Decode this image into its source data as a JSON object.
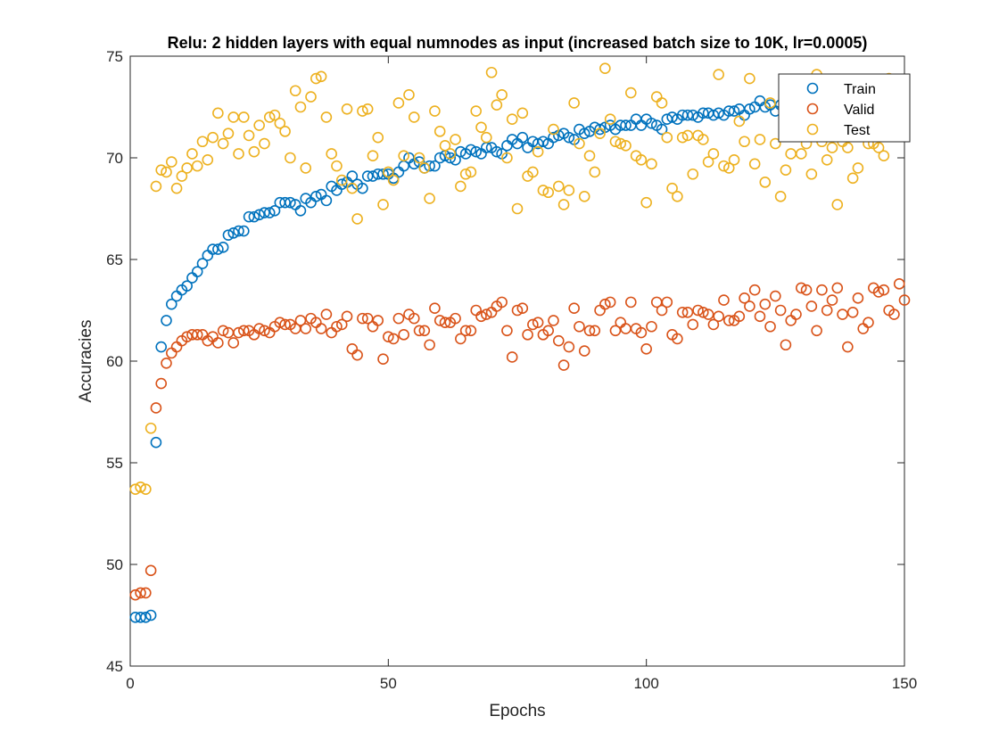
{
  "chart_data": {
    "type": "scatter",
    "title": "Relu: 2 hidden layers with equal numnodes as input (increased batch size to 10K, lr=0.0005)",
    "xlabel": "Epochs",
    "ylabel": "Accuracies",
    "xlim": [
      0,
      150
    ],
    "ylim": [
      45,
      75
    ],
    "xticks": [
      0,
      50,
      100,
      150
    ],
    "yticks": [
      45,
      50,
      55,
      60,
      65,
      70,
      75
    ],
    "grid": false,
    "legend_position": "top-right",
    "marker": "open-circle",
    "series": [
      {
        "name": "Train",
        "color": "#0072BD",
        "x": [
          1,
          2,
          3,
          4,
          5,
          6,
          7,
          8,
          9,
          10,
          11,
          12,
          13,
          14,
          15,
          16,
          17,
          18,
          19,
          20,
          21,
          22,
          23,
          24,
          25,
          26,
          27,
          28,
          29,
          30,
          31,
          32,
          33,
          34,
          35,
          36,
          37,
          38,
          39,
          40,
          41,
          42,
          43,
          44,
          45,
          46,
          47,
          48,
          49,
          50,
          51,
          52,
          53,
          54,
          55,
          56,
          57,
          58,
          59,
          60,
          61,
          62,
          63,
          64,
          65,
          66,
          67,
          68,
          69,
          70,
          71,
          72,
          73,
          74,
          75,
          76,
          77,
          78,
          79,
          80,
          81,
          82,
          83,
          84,
          85,
          86,
          87,
          88,
          89,
          90,
          91,
          92,
          93,
          94,
          95,
          96,
          97,
          98,
          99,
          100,
          101,
          102,
          103,
          104,
          105,
          106,
          107,
          108,
          109,
          110,
          111,
          112,
          113,
          114,
          115,
          116,
          117,
          118,
          119,
          120,
          121,
          122,
          123,
          124,
          125,
          126,
          127,
          128,
          129,
          130,
          131,
          132,
          133,
          134,
          135,
          136,
          137,
          138,
          139,
          140,
          141,
          142,
          143,
          144,
          145,
          146,
          147,
          148,
          149,
          150
        ],
        "values": [
          47.4,
          47.4,
          47.4,
          47.5,
          56.0,
          60.7,
          62.0,
          62.8,
          63.2,
          63.5,
          63.7,
          64.1,
          64.4,
          64.8,
          65.2,
          65.5,
          65.5,
          65.6,
          66.2,
          66.3,
          66.4,
          66.4,
          67.1,
          67.1,
          67.2,
          67.3,
          67.3,
          67.4,
          67.8,
          67.8,
          67.8,
          67.7,
          67.4,
          68.0,
          67.8,
          68.1,
          68.2,
          67.9,
          68.6,
          68.4,
          68.7,
          68.8,
          69.1,
          68.7,
          68.5,
          69.1,
          69.1,
          69.2,
          69.2,
          69.2,
          69.0,
          69.3,
          69.6,
          70.0,
          69.7,
          69.8,
          69.5,
          69.6,
          69.6,
          70.0,
          70.1,
          70.0,
          69.9,
          70.3,
          70.2,
          70.4,
          70.3,
          70.2,
          70.5,
          70.5,
          70.3,
          70.2,
          70.6,
          70.9,
          70.7,
          71.0,
          70.5,
          70.8,
          70.7,
          70.8,
          70.7,
          71.0,
          71.1,
          71.2,
          71.0,
          70.9,
          71.4,
          71.2,
          71.3,
          71.5,
          71.4,
          71.5,
          71.6,
          71.4,
          71.6,
          71.6,
          71.6,
          71.9,
          71.6,
          71.9,
          71.7,
          71.6,
          71.4,
          71.9,
          72.0,
          71.9,
          72.1,
          72.1,
          72.1,
          72.0,
          72.2,
          72.2,
          72.1,
          72.2,
          72.1,
          72.3,
          72.3,
          72.4,
          72.1,
          72.4,
          72.5,
          72.8,
          72.5,
          72.6,
          72.3,
          72.6,
          72.9,
          73.0,
          72.8,
          73.1,
          73.1,
          73.0,
          73.2,
          73.1,
          73.2,
          73.2,
          73.3,
          73.3,
          73.4,
          73.5,
          73.3,
          73.5,
          73.6,
          73.4,
          73.6,
          73.5,
          73.3,
          73.6,
          73.8,
          73.8
        ]
      },
      {
        "name": "Valid",
        "color": "#D95319",
        "x": [
          1,
          2,
          3,
          4,
          5,
          6,
          7,
          8,
          9,
          10,
          11,
          12,
          13,
          14,
          15,
          16,
          17,
          18,
          19,
          20,
          21,
          22,
          23,
          24,
          25,
          26,
          27,
          28,
          29,
          30,
          31,
          32,
          33,
          34,
          35,
          36,
          37,
          38,
          39,
          40,
          41,
          42,
          43,
          44,
          45,
          46,
          47,
          48,
          49,
          50,
          51,
          52,
          53,
          54,
          55,
          56,
          57,
          58,
          59,
          60,
          61,
          62,
          63,
          64,
          65,
          66,
          67,
          68,
          69,
          70,
          71,
          72,
          73,
          74,
          75,
          76,
          77,
          78,
          79,
          80,
          81,
          82,
          83,
          84,
          85,
          86,
          87,
          88,
          89,
          90,
          91,
          92,
          93,
          94,
          95,
          96,
          97,
          98,
          99,
          100,
          101,
          102,
          103,
          104,
          105,
          106,
          107,
          108,
          109,
          110,
          111,
          112,
          113,
          114,
          115,
          116,
          117,
          118,
          119,
          120,
          121,
          122,
          123,
          124,
          125,
          126,
          127,
          128,
          129,
          130,
          131,
          132,
          133,
          134,
          135,
          136,
          137,
          138,
          139,
          140,
          141,
          142,
          143,
          144,
          145,
          146,
          147,
          148,
          149,
          150
        ],
        "values": [
          48.5,
          48.6,
          48.6,
          49.7,
          57.7,
          58.9,
          59.9,
          60.4,
          60.7,
          61.0,
          61.2,
          61.3,
          61.3,
          61.3,
          61.0,
          61.2,
          60.9,
          61.5,
          61.4,
          60.9,
          61.4,
          61.5,
          61.5,
          61.3,
          61.6,
          61.5,
          61.4,
          61.7,
          61.9,
          61.8,
          61.8,
          61.6,
          62.0,
          61.6,
          62.1,
          61.9,
          61.6,
          62.3,
          61.4,
          61.7,
          61.8,
          62.2,
          60.6,
          60.3,
          62.1,
          62.1,
          61.7,
          62.0,
          60.1,
          61.2,
          61.1,
          62.1,
          61.3,
          62.3,
          62.1,
          61.5,
          61.5,
          60.8,
          62.6,
          62.0,
          61.9,
          61.9,
          62.1,
          61.1,
          61.5,
          61.5,
          62.5,
          62.2,
          62.3,
          62.4,
          62.7,
          62.9,
          61.5,
          60.2,
          62.5,
          62.6,
          61.3,
          61.8,
          61.9,
          61.3,
          61.5,
          62.0,
          61.0,
          59.8,
          60.7,
          62.6,
          61.7,
          60.5,
          61.5,
          61.5,
          62.5,
          62.8,
          62.9,
          61.5,
          61.9,
          61.6,
          62.9,
          61.6,
          61.4,
          60.6,
          61.7,
          62.9,
          62.5,
          62.9,
          61.3,
          61.1,
          62.4,
          62.4,
          61.8,
          62.5,
          62.4,
          62.3,
          61.8,
          62.2,
          63.0,
          62.0,
          62.0,
          62.2,
          63.1,
          62.7,
          63.5,
          62.2,
          62.8,
          61.7,
          63.2,
          62.5,
          60.8,
          62.0,
          62.3,
          63.6,
          63.5,
          62.7,
          61.5,
          63.5,
          62.5,
          63.0,
          63.6,
          62.3,
          60.7,
          62.4,
          63.1,
          61.6,
          61.9,
          63.6,
          63.4,
          63.5,
          62.5,
          62.3,
          63.8,
          63.0
        ]
      },
      {
        "name": "Test",
        "color": "#EDB120",
        "x": [
          1,
          2,
          3,
          4,
          5,
          6,
          7,
          8,
          9,
          10,
          11,
          12,
          13,
          14,
          15,
          16,
          17,
          18,
          19,
          20,
          21,
          22,
          23,
          24,
          25,
          26,
          27,
          28,
          29,
          30,
          31,
          32,
          33,
          34,
          35,
          36,
          37,
          38,
          39,
          40,
          41,
          42,
          43,
          44,
          45,
          46,
          47,
          48,
          49,
          50,
          51,
          52,
          53,
          54,
          55,
          56,
          57,
          58,
          59,
          60,
          61,
          62,
          63,
          64,
          65,
          66,
          67,
          68,
          69,
          70,
          71,
          72,
          73,
          74,
          75,
          76,
          77,
          78,
          79,
          80,
          81,
          82,
          83,
          84,
          85,
          86,
          87,
          88,
          89,
          90,
          91,
          92,
          93,
          94,
          95,
          96,
          97,
          98,
          99,
          100,
          101,
          102,
          103,
          104,
          105,
          106,
          107,
          108,
          109,
          110,
          111,
          112,
          113,
          114,
          115,
          116,
          117,
          118,
          119,
          120,
          121,
          122,
          123,
          124,
          125,
          126,
          127,
          128,
          129,
          130,
          131,
          132,
          133,
          134,
          135,
          136,
          137,
          138,
          139,
          140,
          141,
          142,
          143,
          144,
          145,
          146,
          147,
          148,
          149,
          150
        ],
        "values": [
          53.7,
          53.8,
          53.7,
          56.7,
          68.6,
          69.4,
          69.3,
          69.8,
          68.5,
          69.1,
          69.5,
          70.2,
          69.6,
          70.8,
          69.9,
          71.0,
          72.2,
          70.7,
          71.2,
          72.0,
          70.2,
          72.0,
          71.1,
          70.3,
          71.6,
          70.7,
          72.0,
          72.1,
          71.7,
          71.3,
          70.0,
          73.3,
          72.5,
          69.5,
          73.0,
          73.9,
          74.0,
          72.0,
          70.2,
          69.6,
          68.9,
          72.4,
          68.5,
          67.0,
          72.3,
          72.4,
          70.1,
          71.0,
          67.7,
          69.3,
          68.9,
          72.7,
          70.1,
          73.1,
          72.0,
          70.0,
          69.5,
          68.0,
          72.3,
          71.3,
          70.6,
          70.2,
          70.9,
          68.6,
          69.2,
          69.3,
          72.3,
          71.5,
          71.0,
          74.2,
          72.6,
          73.1,
          70.0,
          71.9,
          67.5,
          72.2,
          69.1,
          69.3,
          70.3,
          68.4,
          68.3,
          71.4,
          68.6,
          67.7,
          68.4,
          72.7,
          70.7,
          68.1,
          70.1,
          69.3,
          71.2,
          74.4,
          71.9,
          70.8,
          70.7,
          70.6,
          73.2,
          70.1,
          69.9,
          67.8,
          69.7,
          73.0,
          72.7,
          71.0,
          68.5,
          68.1,
          71.0,
          71.1,
          69.2,
          71.1,
          70.9,
          69.8,
          70.2,
          74.1,
          69.6,
          69.5,
          69.9,
          71.8,
          70.8,
          73.9,
          69.7,
          70.9,
          68.8,
          72.7,
          70.7,
          68.1,
          69.4,
          70.2,
          73.8,
          70.2,
          70.7,
          69.2,
          74.1,
          70.8,
          69.9,
          70.5,
          67.7,
          70.8,
          70.5,
          69.0,
          69.5,
          72.7,
          70.7,
          70.7,
          70.5,
          70.1,
          73.9,
          72.7,
          72.6,
          72.6
        ]
      }
    ]
  }
}
